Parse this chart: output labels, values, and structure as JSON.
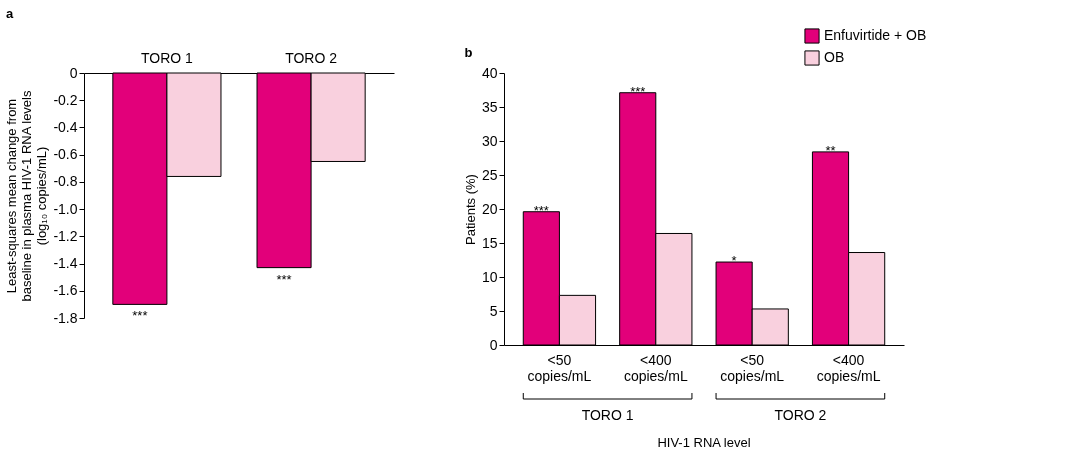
{
  "chart_data": [
    {
      "type": "bar",
      "title": "a",
      "ylabel": "Least-squares mean change from\nbaseline in plasma HIV-1 RNA levels\n(log₁₀ copies/mL)",
      "categories": [
        "TORO 1",
        "TORO 2"
      ],
      "series": [
        {
          "color": "#e2007a",
          "values": [
            -1.7,
            -1.43
          ]
        },
        {
          "color": "#f9d0de",
          "values": [
            -0.76,
            -0.65
          ]
        }
      ],
      "ylim": [
        -1.8,
        0
      ],
      "yticks": [
        {
          "value": -1.8,
          "label": "-1.8"
        },
        {
          "value": -1.6,
          "label": "-1.6"
        },
        {
          "value": -1.4,
          "label": "-1.4"
        },
        {
          "value": -1.2,
          "label": "-1.2"
        },
        {
          "value": -1.0,
          "label": "-1.0"
        },
        {
          "value": -0.8,
          "label": "-0.8"
        },
        {
          "value": -0.6,
          "label": "-0.6"
        },
        {
          "value": -0.4,
          "label": "-0.4"
        },
        {
          "value": -0.2,
          "label": "-0.2"
        },
        0
      ],
      "grid": false,
      "legend": false,
      "annotations": [
        {
          "text": "***",
          "x": "TORO 1",
          "y": -1.7
        },
        {
          "text": "***",
          "x": "TORO 2",
          "y": -1.43
        }
      ]
    },
    {
      "type": "bar",
      "title": "b",
      "ylabel": "Patients (%)",
      "xlabel": "HIV-1 RNA level",
      "categories": [
        "<50\ncopies/mL",
        "<400\ncopies/mL",
        "<50\ncopies/mL",
        "<400\ncopies/mL"
      ],
      "series": [
        {
          "name": "Enfuvirtide + OB",
          "color": "#e2007a",
          "values": [
            19.6,
            37.1,
            12.2,
            28.4
          ]
        },
        {
          "name": "OB",
          "color": "#f9d0de",
          "values": [
            7.3,
            16.4,
            5.3,
            13.6
          ]
        }
      ],
      "ylim": [
        0,
        40
      ],
      "yticks": [
        0,
        5,
        10,
        15,
        20,
        25,
        30,
        35,
        40
      ],
      "grid": false,
      "legend": "top right",
      "annotations": [
        {
          "text": "***",
          "x": "<50\ncopies/mL",
          "y": 19.6
        },
        {
          "text": "***",
          "x": "<400\ncopies/mL",
          "y": 37.1
        },
        {
          "text": "*",
          "y": 12.2
        },
        {
          "text": "**",
          "y": 28.4
        },
        "TORO 1",
        "TORO 2"
      ]
    }
  ]
}
